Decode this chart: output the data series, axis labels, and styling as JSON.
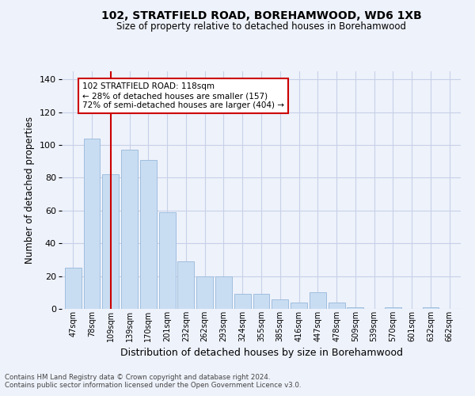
{
  "title": "102, STRATFIELD ROAD, BOREHAMWOOD, WD6 1XB",
  "subtitle": "Size of property relative to detached houses in Borehamwood",
  "xlabel": "Distribution of detached houses by size in Borehamwood",
  "ylabel": "Number of detached properties",
  "categories": [
    "47sqm",
    "78sqm",
    "109sqm",
    "139sqm",
    "170sqm",
    "201sqm",
    "232sqm",
    "262sqm",
    "293sqm",
    "324sqm",
    "355sqm",
    "385sqm",
    "416sqm",
    "447sqm",
    "478sqm",
    "509sqm",
    "539sqm",
    "570sqm",
    "601sqm",
    "632sqm",
    "662sqm"
  ],
  "values": [
    25,
    104,
    82,
    97,
    91,
    59,
    29,
    20,
    20,
    9,
    9,
    6,
    4,
    10,
    4,
    1,
    0,
    1,
    0,
    1,
    0
  ],
  "bar_color": "#c9ddf2",
  "bar_edge_color": "#a0bede",
  "vline_x": 2,
  "vline_color": "#cc0000",
  "ylim": [
    0,
    145
  ],
  "yticks": [
    0,
    20,
    40,
    60,
    80,
    100,
    120,
    140
  ],
  "annotation_title": "102 STRATFIELD ROAD: 118sqm",
  "annotation_line1": "← 28% of detached houses are smaller (157)",
  "annotation_line2": "72% of semi-detached houses are larger (404) →",
  "annotation_box_color": "#ffffff",
  "annotation_box_edge": "#cc0000",
  "background_color": "#eef2fb",
  "grid_color": "#c8d0e8",
  "footer1": "Contains HM Land Registry data © Crown copyright and database right 2024.",
  "footer2": "Contains public sector information licensed under the Open Government Licence v3.0."
}
